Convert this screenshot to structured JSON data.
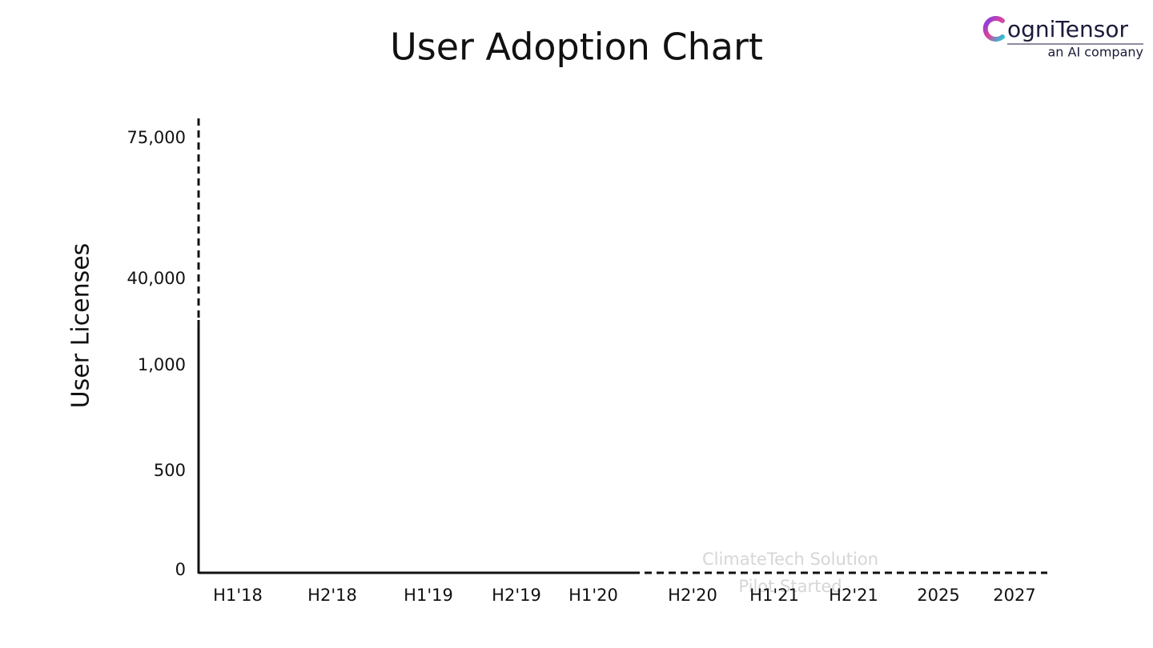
{
  "logo": {
    "name": "ogniTensor",
    "tagline": "an AI company"
  },
  "chart_data": {
    "type": "line",
    "title": "User Adoption Chart",
    "y_label": "User Licenses",
    "categories": [
      "H1'18",
      "H2'18",
      "H1'19",
      "H2'19",
      "H1'20",
      "H2'20",
      "H1'21",
      "H2'21",
      "2025",
      "2027"
    ],
    "ylim": [
      0,
      75000
    ],
    "yticks": [
      0,
      500,
      {
        "value": 1000,
        "label": "1,000"
      },
      {
        "value": 40000,
        "label": "40,000"
      },
      {
        "value": 75000,
        "label": "75,000"
      }
    ],
    "annotations": [
      "ClimateTech Solution",
      "Pilot Started"
    ]
  }
}
